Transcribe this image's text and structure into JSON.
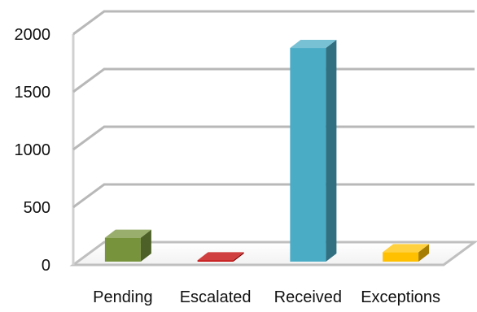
{
  "chart_data": {
    "type": "bar",
    "style": "3d",
    "title": "",
    "xlabel": "",
    "ylabel": "",
    "categories": [
      "Pending",
      "Escalated",
      "Received",
      "Exceptions"
    ],
    "values": [
      235,
      40,
      1880,
      110
    ],
    "colors": [
      "#77933C",
      "#C00000",
      "#4BACC6",
      "#FFC000"
    ],
    "ylim": [
      0,
      2000
    ],
    "yticks": [
      0,
      500,
      1000,
      1500,
      2000
    ],
    "grid": true,
    "legend": "none"
  }
}
